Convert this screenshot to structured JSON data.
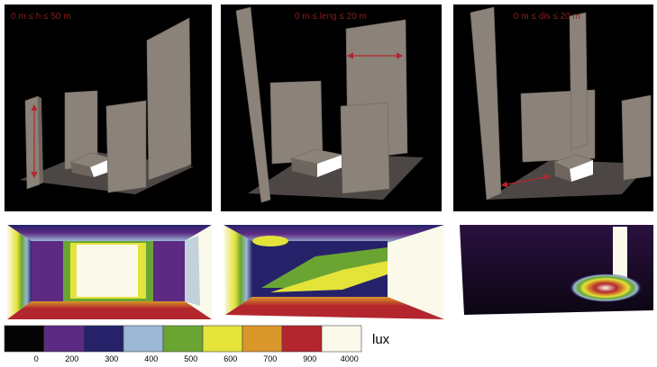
{
  "panels": [
    {
      "label": "0 m ≤ h ≤ 50 m"
    },
    {
      "label": "0 m ≤ leng ≤ 20 m"
    },
    {
      "label": "0 m ≤ dis ≤ 20 m"
    }
  ],
  "legend": {
    "unit": "lux",
    "items": [
      {
        "color": "#050505",
        "label": "0"
      },
      {
        "color": "#5c2a82",
        "label": "200"
      },
      {
        "color": "#25226a",
        "label": "300"
      },
      {
        "color": "#9bb7d4",
        "label": "400"
      },
      {
        "color": "#6aa534",
        "label": "500"
      },
      {
        "color": "#e3e33a",
        "label": "600"
      },
      {
        "color": "#d9962a",
        "label": "700"
      },
      {
        "color": "#b3262d",
        "label": "900"
      },
      {
        "color": "#fbf9ea",
        "label": "4000"
      }
    ]
  }
}
